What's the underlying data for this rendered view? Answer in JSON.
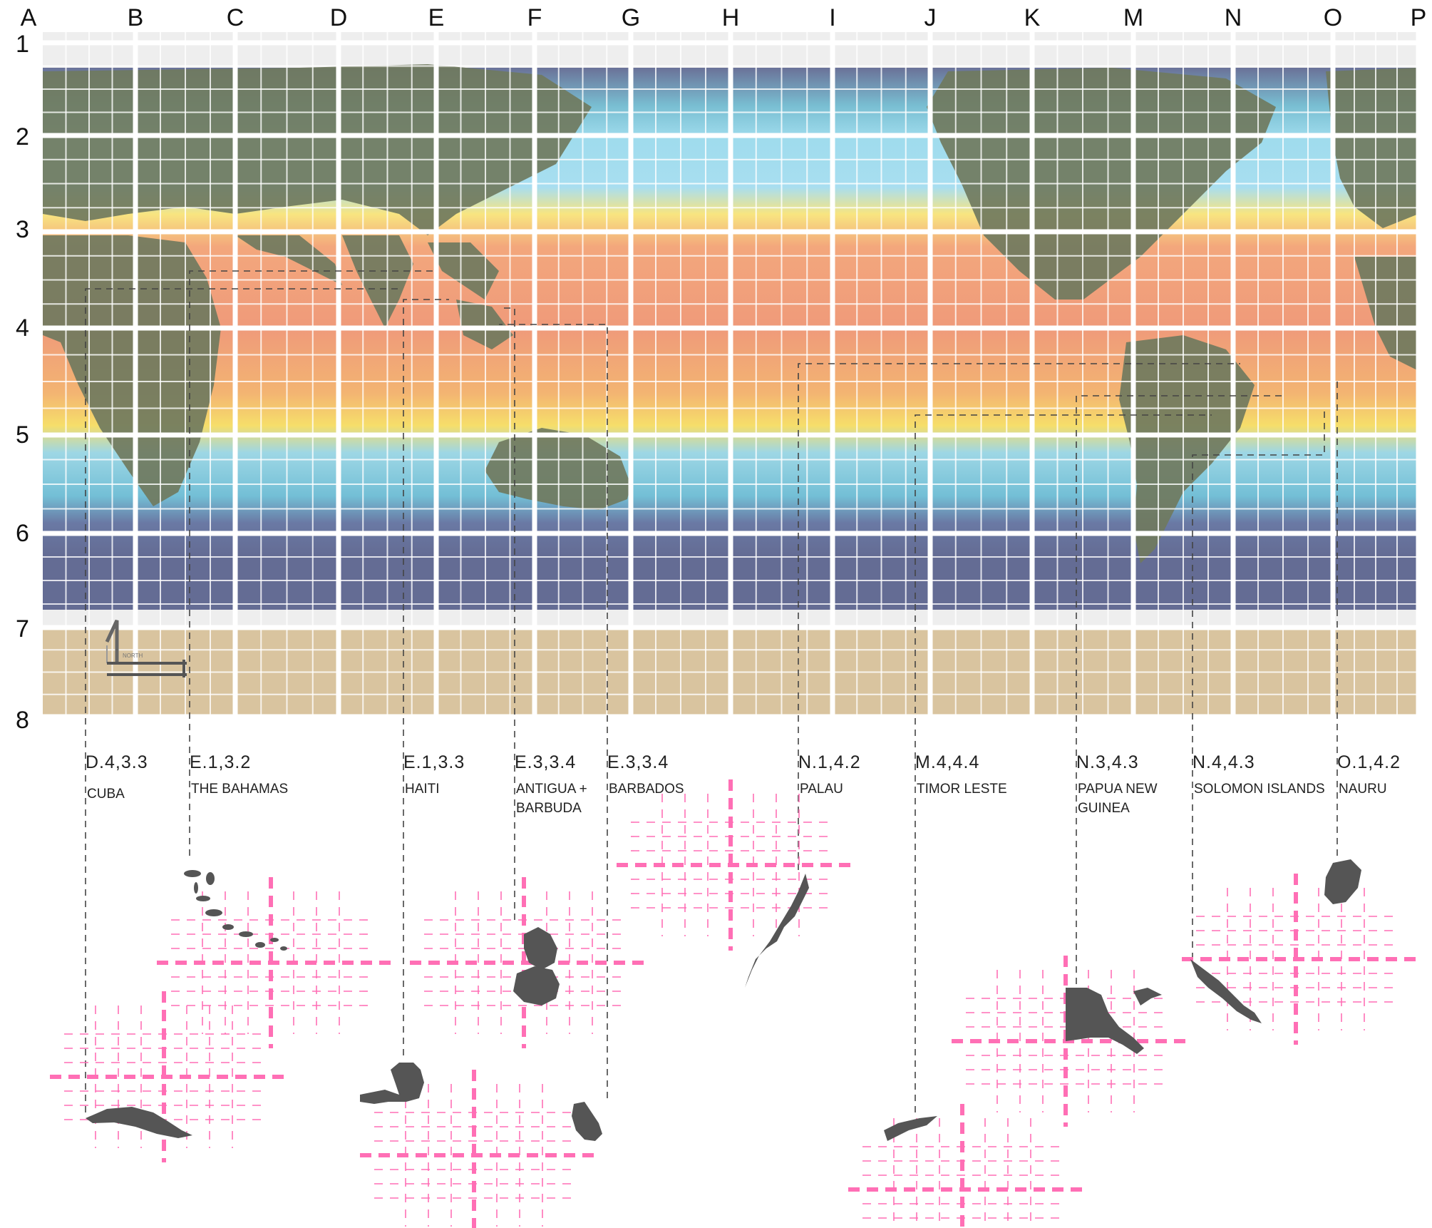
{
  "grid": {
    "columns": [
      "A",
      "B",
      "C",
      "D",
      "E",
      "F",
      "G",
      "H",
      "I",
      "J",
      "K",
      "M",
      "N",
      "O",
      "P"
    ],
    "rows": [
      "1",
      "2",
      "3",
      "4",
      "5",
      "6",
      "7",
      "8"
    ]
  },
  "compass": {
    "label": "NORTH"
  },
  "countries": [
    {
      "id": "cuba",
      "coord": "D.4,3.3",
      "name": "CUBA"
    },
    {
      "id": "bahamas",
      "coord": "E.1,3.2",
      "name": "THE BAHAMAS"
    },
    {
      "id": "haiti",
      "coord": "E.1,3.3",
      "name": "HAITI"
    },
    {
      "id": "antigua",
      "coord": "E.3,3.4",
      "name": "ANTIGUA + BARBUDA"
    },
    {
      "id": "barbados",
      "coord": "E.3,3.4",
      "name": "BARBADOS"
    },
    {
      "id": "palau",
      "coord": "N.1,4.2",
      "name": "PALAU"
    },
    {
      "id": "timor",
      "coord": "M.4,4.4",
      "name": "TIMOR LESTE"
    },
    {
      "id": "png",
      "coord": "N.3,4.3",
      "name": "PAPUA NEW GUINEA"
    },
    {
      "id": "solomon",
      "coord": "N.4,4.3",
      "name": "SOLOMON ISLANDS"
    },
    {
      "id": "nauru",
      "coord": "O.1,4.2",
      "name": "NAURU"
    }
  ],
  "colors": {
    "ocean_warm": "#ef9a7a",
    "ocean_mid": "#f6d36a",
    "ocean_cool": "#8fd3e2",
    "ocean_cold": "#66709a",
    "land": "#6f7a5c",
    "ice": "#eeeeee",
    "antarctica": "#d9c49f",
    "grid_overlay": "#ff6fb5",
    "island": "#555555",
    "leader_line": "#444444"
  }
}
